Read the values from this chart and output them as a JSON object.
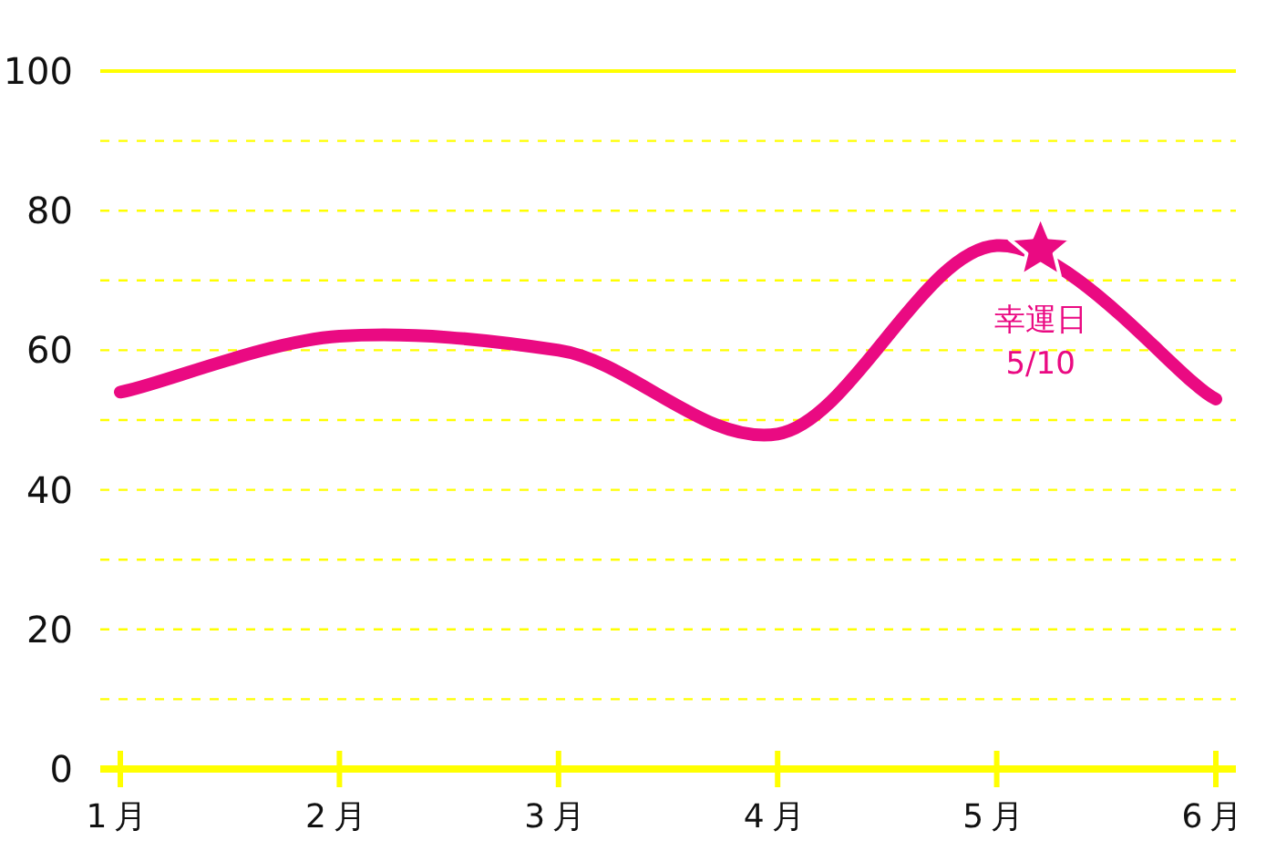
{
  "chart_data": {
    "type": "line",
    "categories": [
      "1月",
      "2月",
      "3月",
      "4月",
      "5月",
      "6月"
    ],
    "series": [
      {
        "color": "#ea0a82",
        "values": [
          54,
          62,
          60,
          48,
          75,
          53
        ]
      }
    ],
    "ylim": [
      0,
      100
    ],
    "yticks": [
      0,
      {
        "value": 10,
        "label": null
      },
      20,
      {
        "value": 30,
        "label": null
      },
      40,
      {
        "value": 50,
        "label": null
      },
      60,
      {
        "value": 70,
        "label": null
      },
      80,
      {
        "value": 90,
        "label": null
      },
      100
    ],
    "grid": "y",
    "marker": "none",
    "line_style": "solid",
    "annotations": [
      "幸運日",
      "5/10"
    ]
  }
}
